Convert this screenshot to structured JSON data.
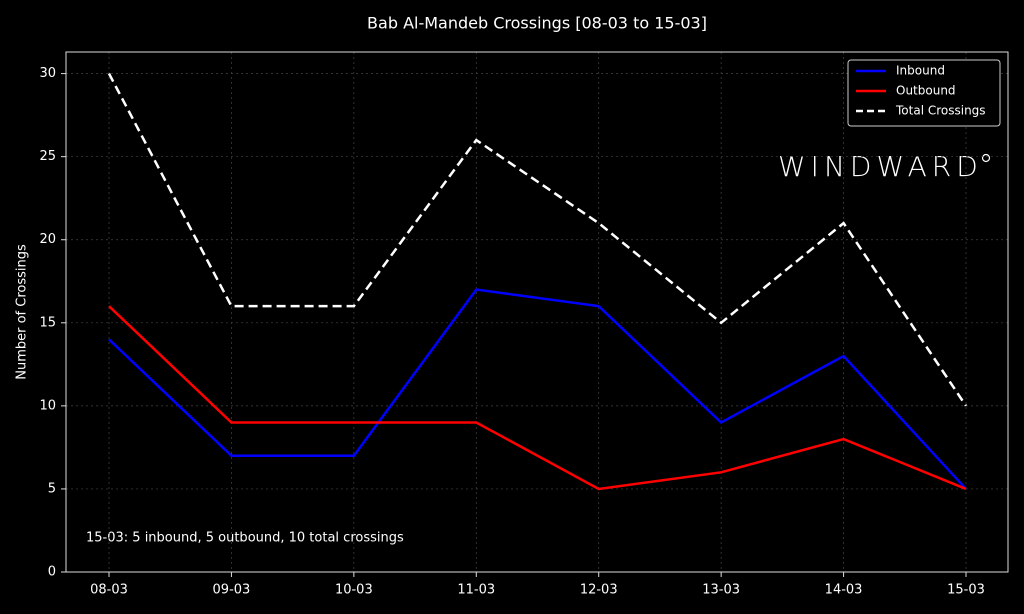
{
  "chart_data": {
    "type": "line",
    "title": "Bab Al-Mandeb Crossings [08-03 to 15-03]",
    "y_label": "Number of Crossings",
    "categories": [
      "08-03",
      "09-03",
      "10-03",
      "11-03",
      "12-03",
      "13-03",
      "14-03",
      "15-03"
    ],
    "series": [
      {
        "name": "Inbound",
        "color": "#0000ff",
        "linestyle": "solid",
        "values": [
          14,
          7,
          7,
          17,
          16,
          9,
          13,
          5
        ]
      },
      {
        "name": "Outbound",
        "color": "#ff0000",
        "linestyle": "solid",
        "values": [
          16,
          9,
          9,
          9,
          5,
          6,
          8,
          5
        ]
      },
      {
        "name": "Total Crossings",
        "color": "#ffffff",
        "linestyle": "dashed",
        "values": [
          30,
          16,
          16,
          26,
          21,
          15,
          21,
          10
        ]
      }
    ],
    "ylim": [
      0,
      31.3
    ],
    "yticks": [
      0,
      5,
      10,
      15,
      20,
      25,
      30
    ],
    "grid": true,
    "legend": "upper right",
    "annotation": "15-03: 5 inbound, 5 outbound, 10 total crossings",
    "watermark": "WINDWARD"
  }
}
